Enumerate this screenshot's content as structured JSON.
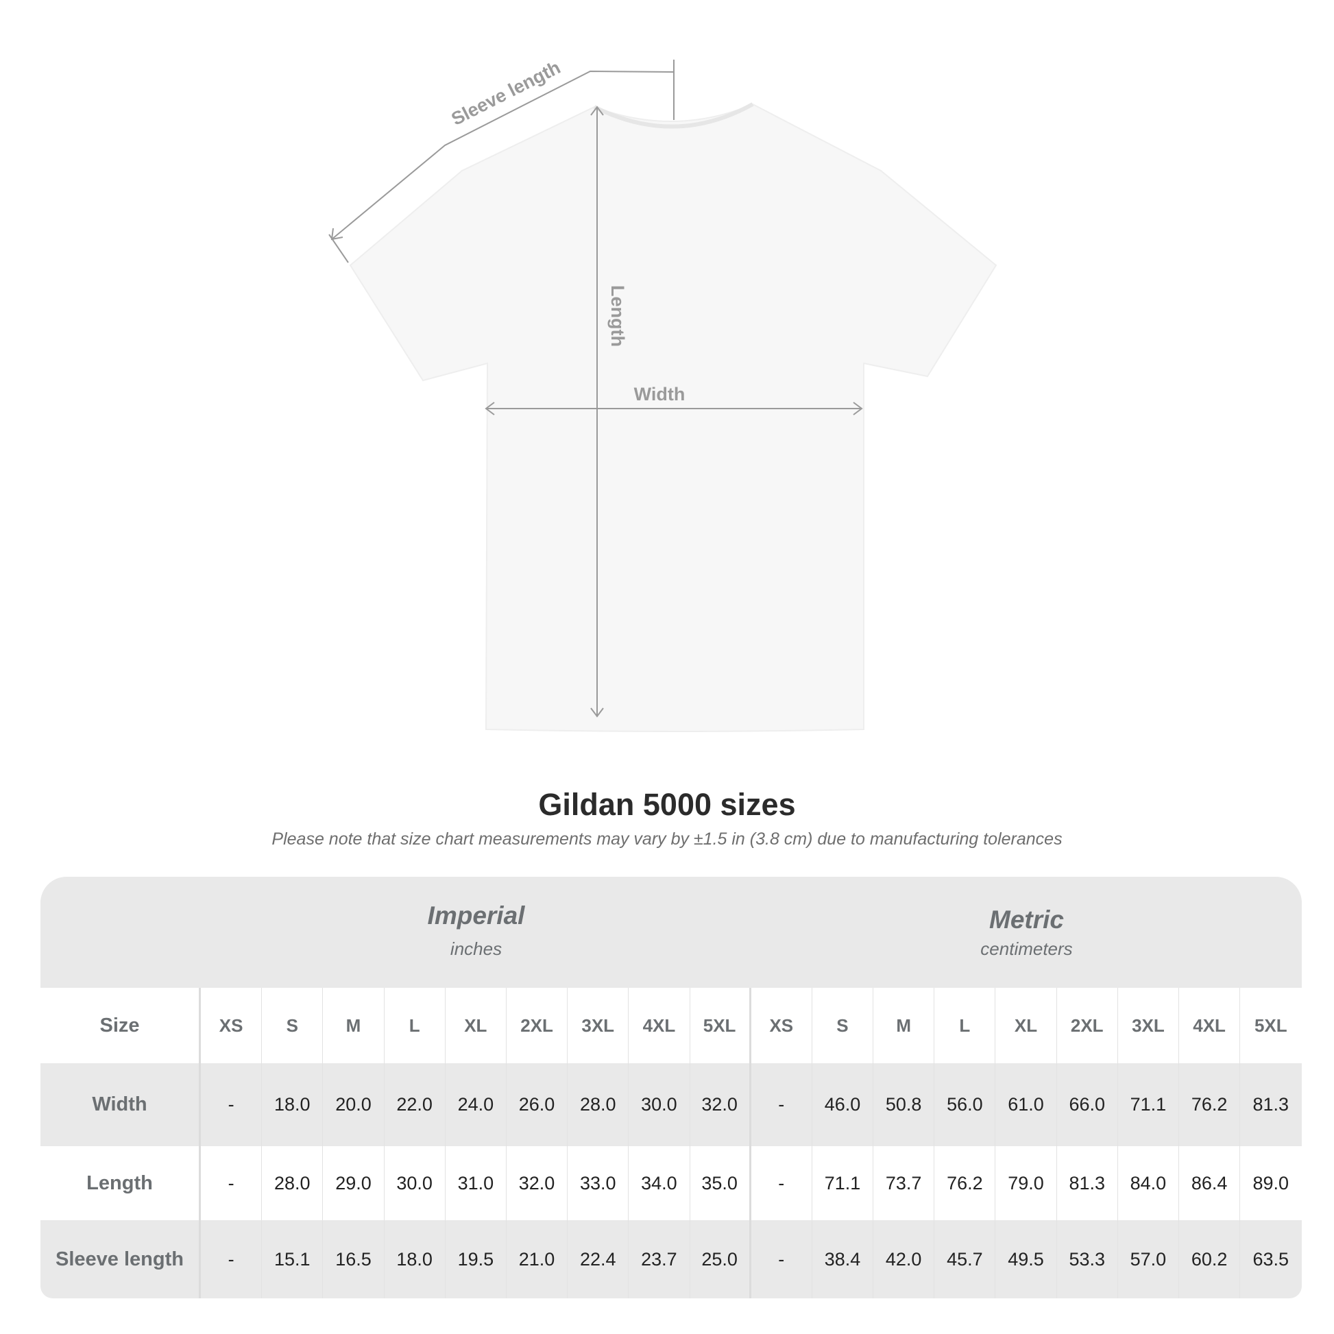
{
  "diagram": {
    "labels": {
      "sleeve": "Sleeve length",
      "length": "Length",
      "width": "Width"
    }
  },
  "title": "Gildan 5000 sizes",
  "note": "Please note that size chart measurements may vary by ±1.5 in (3.8 cm) due to manufacturing tolerances",
  "table": {
    "imperial": {
      "name": "Imperial",
      "unit": "inches"
    },
    "metric": {
      "name": "Metric",
      "unit": "centimeters"
    },
    "rows": [
      {
        "label": "Size",
        "cells": [
          "XS",
          "S",
          "M",
          "L",
          "XL",
          "2XL",
          "3XL",
          "4XL",
          "5XL",
          "XS",
          "S",
          "M",
          "L",
          "XL",
          "2XL",
          "3XL",
          "4XL",
          "5XL"
        ]
      },
      {
        "label": "Width",
        "cells": [
          "-",
          "18.0",
          "20.0",
          "22.0",
          "24.0",
          "26.0",
          "28.0",
          "30.0",
          "32.0",
          "-",
          "46.0",
          "50.8",
          "56.0",
          "61.0",
          "66.0",
          "71.1",
          "76.2",
          "81.3"
        ]
      },
      {
        "label": "Length",
        "cells": [
          "-",
          "28.0",
          "29.0",
          "30.0",
          "31.0",
          "32.0",
          "33.0",
          "34.0",
          "35.0",
          "-",
          "71.1",
          "73.7",
          "76.2",
          "79.0",
          "81.3",
          "84.0",
          "86.4",
          "89.0"
        ]
      },
      {
        "label": "Sleeve length",
        "cells": [
          "-",
          "15.1",
          "16.5",
          "18.0",
          "19.5",
          "21.0",
          "22.4",
          "23.7",
          "25.0",
          "-",
          "38.4",
          "42.0",
          "45.7",
          "49.5",
          "53.3",
          "57.0",
          "60.2",
          "63.5"
        ]
      }
    ]
  },
  "colors": {
    "header_bg": "#e9e9e9",
    "label_text": "#6b6f72",
    "measure_line": "#9a9a9a"
  }
}
